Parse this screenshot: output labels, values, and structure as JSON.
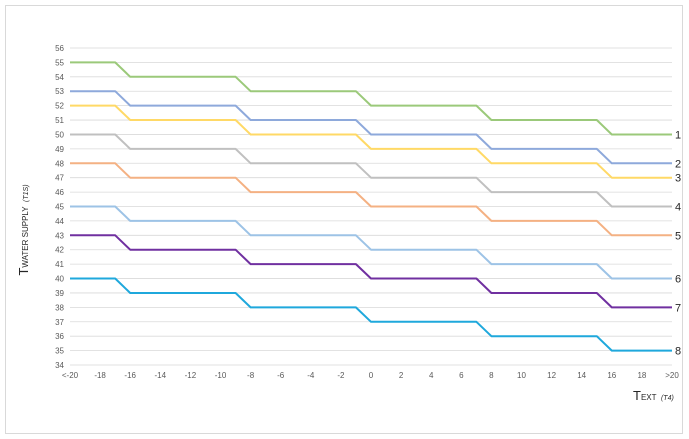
{
  "chart_data": {
    "type": "line",
    "ylim": [
      34,
      56
    ],
    "y_ticks": [
      34,
      35,
      36,
      37,
      38,
      39,
      40,
      41,
      42,
      43,
      44,
      45,
      46,
      47,
      48,
      49,
      50,
      51,
      52,
      53,
      54,
      55,
      56
    ],
    "x_ticks": [
      "<-20",
      "-18",
      "-16",
      "-14",
      "-12",
      "-10",
      "-8",
      "-6",
      "-4",
      "-2",
      "0",
      "2",
      "4",
      "6",
      "8",
      "10",
      "12",
      "14",
      "16",
      "18",
      ">20"
    ],
    "grid": true,
    "ylabel": {
      "main": "T",
      "sub": "WATER SUPPLY",
      "note": "(T1S)"
    },
    "xlabel": {
      "main": "T",
      "sub": "EXT",
      "note": "(T4)"
    },
    "x": [
      -20,
      -17,
      -16,
      -9,
      -8,
      -1,
      0,
      7,
      8,
      15,
      16,
      20
    ],
    "series": [
      {
        "label": "",
        "color": "#9bc97a",
        "values": [
          55,
          55,
          54,
          54,
          53,
          53,
          52,
          52,
          51,
          51,
          50,
          50
        ]
      },
      {
        "label": "1",
        "color": "#8ea9db",
        "values": [
          53,
          53,
          52,
          52,
          51,
          51,
          50,
          50,
          49,
          49,
          48,
          48
        ]
      },
      {
        "label": "2",
        "color": "#ffd966",
        "values": [
          52,
          52,
          51,
          51,
          50,
          50,
          49,
          49,
          48,
          48,
          47,
          47
        ]
      },
      {
        "label": "3",
        "color": "#c0c0c0",
        "values": [
          50,
          50,
          49,
          49,
          48,
          48,
          47,
          47,
          46,
          46,
          45,
          45
        ]
      },
      {
        "label": "4",
        "color": "#f4b183",
        "values": [
          48,
          48,
          47,
          47,
          46,
          46,
          45,
          45,
          44,
          44,
          43,
          43
        ]
      },
      {
        "label": "5",
        "color": "#9dc3e6",
        "values": [
          45,
          45,
          44,
          44,
          43,
          43,
          42,
          42,
          41,
          41,
          40,
          40
        ]
      },
      {
        "label": "6",
        "color": "#7030a0",
        "values": [
          43,
          43,
          42,
          42,
          41,
          41,
          40,
          40,
          39,
          39,
          38,
          38
        ]
      },
      {
        "label": "7",
        "color": "#1fa8dc",
        "values": [
          40,
          40,
          39,
          39,
          38,
          38,
          37,
          37,
          36,
          36,
          35,
          35
        ]
      }
    ],
    "curve_labels": [
      {
        "text": "1",
        "y": 50
      },
      {
        "text": "2",
        "y": 48
      },
      {
        "text": "3",
        "y": 47
      },
      {
        "text": "4",
        "y": 45
      },
      {
        "text": "5",
        "y": 43
      },
      {
        "text": "6",
        "y": 40
      },
      {
        "text": "7",
        "y": 38
      },
      {
        "text": "8",
        "y": 35
      }
    ]
  }
}
